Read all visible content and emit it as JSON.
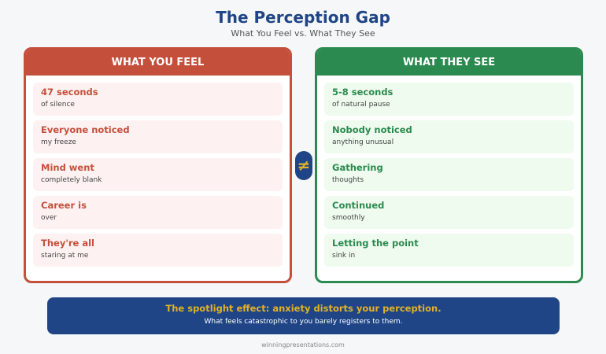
{
  "header": {
    "title": "The Perception Gap",
    "subtitle": "What You Feel vs. What They See"
  },
  "left": {
    "title": "WHAT YOU FEEL",
    "items": [
      {
        "head": "47 seconds",
        "sub": "of silence"
      },
      {
        "head": "Everyone noticed",
        "sub": "my freeze"
      },
      {
        "head": "Mind went",
        "sub": "completely blank"
      },
      {
        "head": "Career is",
        "sub": "over"
      },
      {
        "head": "They're all",
        "sub": "staring at me"
      }
    ]
  },
  "right": {
    "title": "WHAT THEY SEE",
    "items": [
      {
        "head": "5-8 seconds",
        "sub": "of natural pause"
      },
      {
        "head": "Nobody noticed",
        "sub": "anything unusual"
      },
      {
        "head": "Gathering",
        "sub": "thoughts"
      },
      {
        "head": "Continued",
        "sub": "smoothly"
      },
      {
        "head": "Letting the point",
        "sub": "sink in"
      }
    ]
  },
  "divider": {
    "symbol": "≠",
    "icon": "not-equal-icon"
  },
  "banner": {
    "main": "The spotlight effect: anxiety distorts your perception.",
    "sub": "What feels catastrophic to you barely registers to them."
  },
  "footer": "winningpresentations.com",
  "colors": {
    "primary": "#1f4586",
    "feel": "#c44f3b",
    "see": "#2b8a4f",
    "accent": "#e2b226"
  }
}
